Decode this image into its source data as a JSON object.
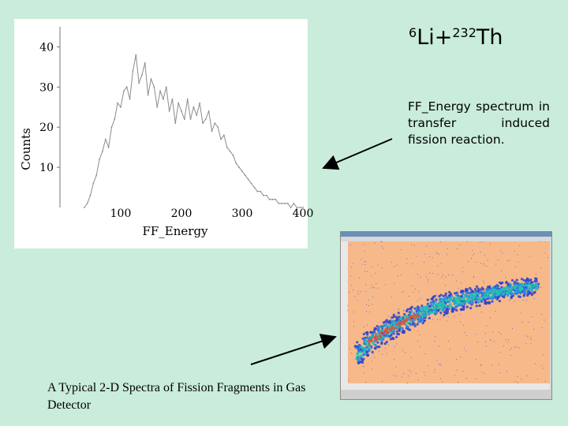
{
  "reaction": {
    "mass_a": "6",
    "element_a": "Li",
    "plus": "+",
    "mass_b": "232",
    "element_b": "Th"
  },
  "caption_right": "FF_Energy spectrum in transfer induced fission reaction.",
  "caption_bottom": "A Typical 2-D Spectra of Fission Fragments in Gas Detector",
  "colors": {
    "background": "#c9ecdb",
    "spectrum_bg": "#f7b98a",
    "hist_line": "#8c8c8c",
    "arrow": "#000000"
  },
  "chart_data": [
    {
      "type": "line",
      "title": "",
      "xlabel": "FF_Energy",
      "ylabel": "Counts",
      "xlim": [
        0,
        400
      ],
      "ylim": [
        0,
        45
      ],
      "xticks": [
        100,
        200,
        300,
        400
      ],
      "yticks": [
        10,
        20,
        30,
        40
      ],
      "series": [
        {
          "x": [
            40,
            45,
            50,
            55,
            60,
            65,
            70,
            75,
            80,
            85,
            90,
            95,
            100,
            105,
            110,
            115,
            120,
            125,
            130,
            135,
            140,
            145,
            150,
            155,
            160,
            165,
            170,
            175,
            180,
            185,
            190,
            195,
            200,
            205,
            210,
            215,
            220,
            225,
            230,
            235,
            240,
            245,
            250,
            255,
            260,
            265,
            270,
            275,
            280,
            285,
            290,
            295,
            300,
            305,
            310,
            315,
            320,
            325,
            330,
            335,
            340,
            345,
            350,
            355,
            360,
            365,
            370,
            375,
            380,
            385,
            390,
            395,
            400
          ],
          "values": [
            0,
            1,
            3,
            6,
            8,
            12,
            14,
            17,
            15,
            20,
            22,
            26,
            25,
            29,
            30,
            27,
            34,
            38,
            31,
            33,
            36,
            28,
            32,
            30,
            25,
            29,
            27,
            30,
            24,
            27,
            21,
            26,
            24,
            22,
            27,
            22,
            25,
            23,
            26,
            21,
            22,
            24,
            19,
            21,
            20,
            17,
            18,
            15,
            14,
            13,
            11,
            10,
            9,
            8,
            7,
            6,
            5,
            4,
            4,
            3,
            3,
            2,
            2,
            2,
            1,
            1,
            1,
            1,
            0,
            1,
            0,
            0,
            0
          ]
        }
      ]
    },
    {
      "type": "heatmap",
      "title": "",
      "xlabel": "",
      "ylabel": "",
      "description_band": "curved dense band rising from lower-left to right",
      "series": [
        {
          "name": "",
          "x": [
            0.05,
            0.1,
            0.2,
            0.3,
            0.4,
            0.5,
            0.6,
            0.7,
            0.8,
            0.9
          ],
          "values": [
            0.2,
            0.28,
            0.38,
            0.45,
            0.52,
            0.57,
            0.6,
            0.63,
            0.66,
            0.68
          ]
        }
      ]
    }
  ]
}
